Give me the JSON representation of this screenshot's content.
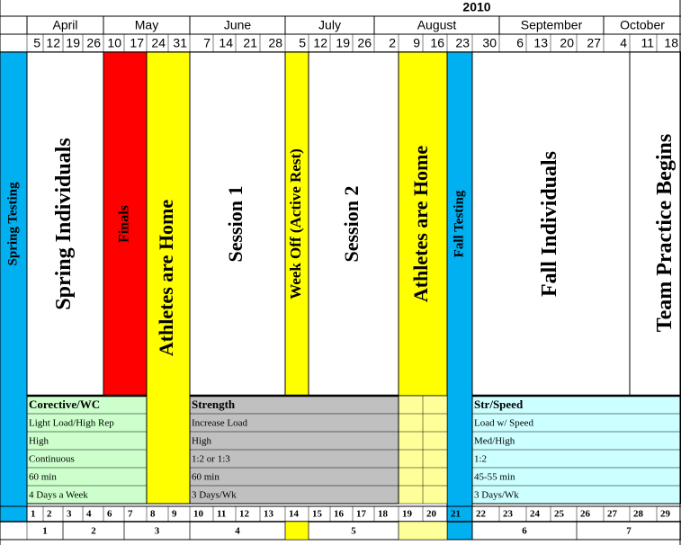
{
  "year": "2010",
  "months": [
    "April",
    "May",
    "June",
    "July",
    "August",
    "September",
    "October"
  ],
  "dates": [
    5,
    12,
    19,
    26,
    10,
    17,
    24,
    31,
    7,
    14,
    21,
    28,
    5,
    12,
    19,
    26,
    2,
    9,
    16,
    23,
    30,
    6,
    13,
    20,
    27,
    4,
    11,
    18
  ],
  "phases": [
    {
      "label": "Spring Testing",
      "color": "#00b0f0"
    },
    {
      "label": "Spring Individuals",
      "color": "#ffffff"
    },
    {
      "label": "Finals",
      "color": "#ff0000"
    },
    {
      "label": "Athletes are Home",
      "color": "#ffff00"
    },
    {
      "label": "Session 1",
      "color": "#ffffff"
    },
    {
      "label": "Week Off  (Active Rest)",
      "color": "#ffff00"
    },
    {
      "label": "Session 2",
      "color": "#ffffff"
    },
    {
      "label": "Athletes are Home",
      "color": "#ffff00"
    },
    {
      "label": "Fall Testing",
      "color": "#00b0f0"
    },
    {
      "label": "Fall Individuals",
      "color": "#ffffff"
    },
    {
      "label": "Team Practice Begins",
      "color": "#ffffff"
    }
  ],
  "blocks": [
    {
      "title": "Corective/WC",
      "color": "#ccffcc",
      "rows": [
        "Light Load/High Rep",
        "High",
        "Continuous",
        "60 min",
        "4 Days a Week"
      ]
    },
    {
      "title": "Strength",
      "color": "#c0c0c0",
      "rows": [
        "Increase Load",
        "High",
        "1:2 or 1:3",
        "60 min",
        "3 Days/Wk"
      ]
    },
    {
      "title": "Str/Speed",
      "color": "#ccffff",
      "rows": [
        "Load w/ Speed",
        "Med/High",
        "1:2",
        "45-55 min",
        "3 Days/Wk"
      ]
    }
  ],
  "weeks": [
    1,
    2,
    3,
    4,
    6,
    7,
    8,
    9,
    10,
    11,
    12,
    13,
    14,
    15,
    16,
    17,
    18,
    19,
    20,
    21,
    22,
    23,
    24,
    25,
    26,
    27,
    28,
    29
  ],
  "mesocycles": [
    1,
    2,
    3,
    4,
    5,
    6,
    7
  ]
}
